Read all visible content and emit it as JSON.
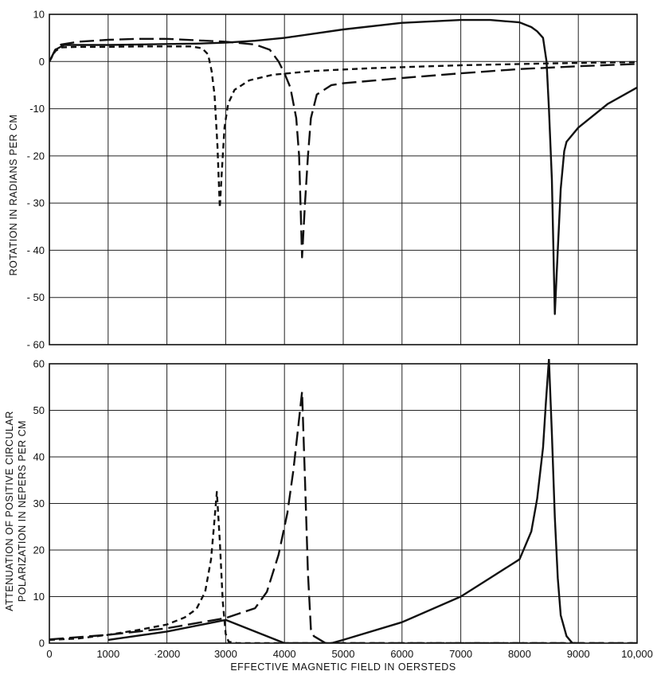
{
  "chart_data": [
    {
      "type": "line",
      "panel": "top",
      "ylabel": "ROTATION IN RADIANS PER CM",
      "xlabel": "",
      "xlim": [
        0,
        10000
      ],
      "ylim": [
        -60,
        10
      ],
      "yticks": [
        10,
        0,
        -10,
        -20,
        -30,
        -40,
        -50,
        -60
      ],
      "ytick_labels": [
        "10",
        "0",
        "-10",
        "- 20",
        "- 30",
        "- 40",
        "- 50",
        "- 60"
      ],
      "grid": true,
      "series": [
        {
          "style": "solid",
          "points": [
            [
              0,
              0
            ],
            [
              100,
              2.5
            ],
            [
              250,
              3.5
            ],
            [
              500,
              3.5
            ],
            [
              1000,
              3.5
            ],
            [
              1500,
              3.6
            ],
            [
              2000,
              3.7
            ],
            [
              2500,
              3.8
            ],
            [
              3000,
              4.0
            ],
            [
              3500,
              4.4
            ],
            [
              4000,
              5.0
            ],
            [
              5000,
              6.8
            ],
            [
              6000,
              8.2
            ],
            [
              7000,
              8.8
            ],
            [
              7500,
              8.8
            ],
            [
              8000,
              8.3
            ],
            [
              8200,
              7.3
            ],
            [
              8300,
              6.4
            ],
            [
              8400,
              5.0
            ],
            [
              8460,
              0
            ],
            [
              8500,
              -10
            ],
            [
              8550,
              -25
            ],
            [
              8600,
              -53.5
            ],
            [
              8650,
              -40
            ],
            [
              8700,
              -27
            ],
            [
              8760,
              -19
            ],
            [
              8800,
              -17
            ],
            [
              9000,
              -14
            ],
            [
              9500,
              -9
            ],
            [
              10000,
              -5.5
            ]
          ]
        },
        {
          "style": "long-dash",
          "points": [
            [
              0,
              0
            ],
            [
              100,
              2.5
            ],
            [
              200,
              3.6
            ],
            [
              500,
              4.2
            ],
            [
              1000,
              4.6
            ],
            [
              1500,
              4.8
            ],
            [
              2000,
              4.8
            ],
            [
              2500,
              4.5
            ],
            [
              3000,
              4.2
            ],
            [
              3500,
              3.6
            ],
            [
              3750,
              2.5
            ],
            [
              3900,
              0
            ],
            [
              4000,
              -2.5
            ],
            [
              4100,
              -5.5
            ],
            [
              4200,
              -12
            ],
            [
              4250,
              -20
            ],
            [
              4300,
              -41.5
            ],
            [
              4350,
              -30
            ],
            [
              4400,
              -20
            ],
            [
              4450,
              -12
            ],
            [
              4550,
              -7
            ],
            [
              4800,
              -5
            ],
            [
              5000,
              -4.6
            ],
            [
              6000,
              -3.5
            ],
            [
              7000,
              -2.5
            ],
            [
              8000,
              -1.6
            ],
            [
              9000,
              -1.0
            ],
            [
              10000,
              -0.5
            ]
          ]
        },
        {
          "style": "short-dash",
          "points": [
            [
              0,
              0
            ],
            [
              100,
              2.2
            ],
            [
              200,
              3.0
            ],
            [
              500,
              3.1
            ],
            [
              1000,
              3.1
            ],
            [
              1500,
              3.2
            ],
            [
              2000,
              3.2
            ],
            [
              2400,
              3.2
            ],
            [
              2600,
              2.8
            ],
            [
              2700,
              1.5
            ],
            [
              2760,
              -2
            ],
            [
              2810,
              -7
            ],
            [
              2860,
              -18
            ],
            [
              2900,
              -31
            ],
            [
              2940,
              -22
            ],
            [
              2980,
              -14
            ],
            [
              3040,
              -9
            ],
            [
              3150,
              -6
            ],
            [
              3400,
              -4
            ],
            [
              3800,
              -2.8
            ],
            [
              4500,
              -2.0
            ],
            [
              5500,
              -1.4
            ],
            [
              7000,
              -0.8
            ],
            [
              8500,
              -0.4
            ],
            [
              10000,
              -0.1
            ]
          ]
        }
      ]
    },
    {
      "type": "line",
      "panel": "bottom",
      "ylabel": "ATTENUATION OF POSITIVE CIRCULAR POLARIZATION IN NEPERS PER CM",
      "ylabel_lines": [
        "ATTENUATION OF POSITIVE CIRCULAR",
        "POLARIZATION IN NEPERS PER CM"
      ],
      "xlabel": "EFFECTIVE MAGNETIC FIELD IN OERSTEDS",
      "xlim": [
        0,
        10000
      ],
      "ylim": [
        0,
        60
      ],
      "yticks": [
        60,
        50,
        40,
        30,
        20,
        10,
        0
      ],
      "ytick_labels": [
        "60",
        "50",
        "40",
        "30",
        "20",
        "10",
        "0"
      ],
      "xticks": [
        0,
        1000,
        2000,
        3000,
        4000,
        5000,
        6000,
        7000,
        8000,
        9000,
        10000
      ],
      "xtick_labels": [
        "0",
        "1000",
        "·2000",
        "3000",
        "4000",
        "5000",
        "6000",
        "7000",
        "8000",
        "9000",
        "10,000"
      ],
      "grid": true,
      "series": [
        {
          "style": "solid",
          "points": [
            [
              1000,
              0.7
            ],
            [
              2000,
              2.5
            ],
            [
              3000,
              5.0
            ],
            [
              4000,
              0
            ],
            [
              4800,
              0
            ],
            [
              5000,
              0.7
            ],
            [
              6000,
              4.5
            ],
            [
              7000,
              10
            ],
            [
              7500,
              14
            ],
            [
              8000,
              18
            ],
            [
              8200,
              24
            ],
            [
              8300,
              31
            ],
            [
              8400,
              42
            ],
            [
              8450,
              52
            ],
            [
              8500,
              61
            ],
            [
              8550,
              45
            ],
            [
              8600,
              27
            ],
            [
              8650,
              14
            ],
            [
              8700,
              6
            ],
            [
              8800,
              1.5
            ],
            [
              8900,
              0
            ],
            [
              9000,
              0
            ]
          ]
        },
        {
          "style": "long-dash",
          "points": [
            [
              0,
              0.8
            ],
            [
              1000,
              1.8
            ],
            [
              2000,
              3.2
            ],
            [
              3000,
              5.4
            ],
            [
              3500,
              7.5
            ],
            [
              3700,
              11
            ],
            [
              3900,
              19
            ],
            [
              4050,
              28
            ],
            [
              4150,
              37
            ],
            [
              4230,
              46
            ],
            [
              4300,
              54
            ],
            [
              4350,
              35
            ],
            [
              4400,
              15
            ],
            [
              4450,
              3
            ],
            [
              4500,
              1.5
            ],
            [
              4700,
              0
            ],
            [
              5500,
              0
            ],
            [
              7000,
              0
            ],
            [
              8000,
              0
            ],
            [
              10000,
              0
            ]
          ]
        },
        {
          "style": "short-dash",
          "points": [
            [
              0,
              0.7
            ],
            [
              500,
              1.0
            ],
            [
              1000,
              1.8
            ],
            [
              1500,
              2.8
            ],
            [
              2000,
              4.0
            ],
            [
              2300,
              5.5
            ],
            [
              2500,
              7.3
            ],
            [
              2650,
              11
            ],
            [
              2750,
              18
            ],
            [
              2800,
              25
            ],
            [
              2850,
              32.5
            ],
            [
              2900,
              22
            ],
            [
              2950,
              9
            ],
            [
              3000,
              2
            ],
            [
              3050,
              0.3
            ],
            [
              3200,
              0
            ],
            [
              4000,
              0
            ],
            [
              6000,
              0
            ],
            [
              10000,
              0
            ]
          ]
        }
      ]
    }
  ]
}
